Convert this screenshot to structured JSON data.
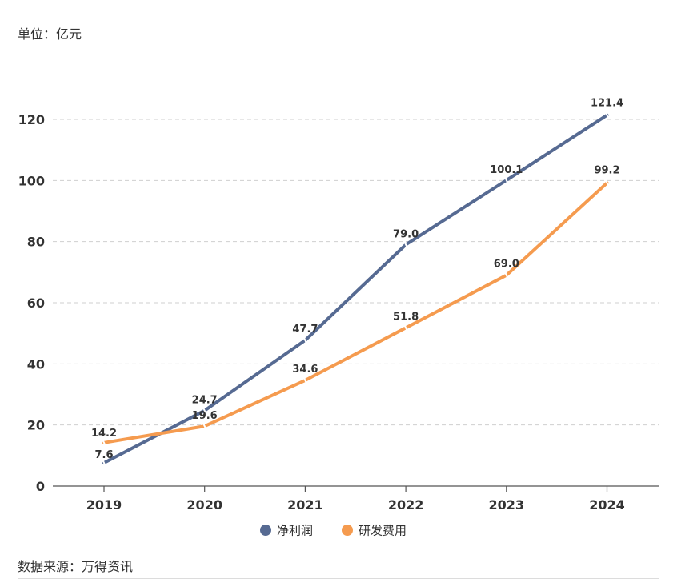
{
  "unit_label": "单位：亿元",
  "source_label": "数据来源：万得资讯",
  "chart_data": {
    "type": "line",
    "title": "",
    "xlabel": "",
    "ylabel": "",
    "categories": [
      "2019",
      "2020",
      "2021",
      "2022",
      "2023",
      "2024"
    ],
    "ylim": [
      0,
      120
    ],
    "yticks": [
      0,
      20,
      40,
      60,
      80,
      100,
      120
    ],
    "ytick_labels": [
      "0",
      "20",
      "40",
      "60",
      "80",
      "100",
      "120"
    ],
    "grid": true,
    "legend_position": "bottom",
    "series": [
      {
        "name": "净利润",
        "color": "#566a92",
        "values": [
          7.6,
          24.7,
          47.7,
          79.0,
          100.1,
          121.4
        ],
        "labels": [
          "7.6",
          "24.7",
          "47.7",
          "79.0",
          "100.1",
          "121.4"
        ]
      },
      {
        "name": "研发费用",
        "color": "#f59b4f",
        "values": [
          14.2,
          19.6,
          34.6,
          51.8,
          69.0,
          99.2
        ],
        "labels": [
          "14.2",
          "19.6",
          "34.6",
          "51.8",
          "69.0",
          "99.2"
        ]
      }
    ]
  }
}
